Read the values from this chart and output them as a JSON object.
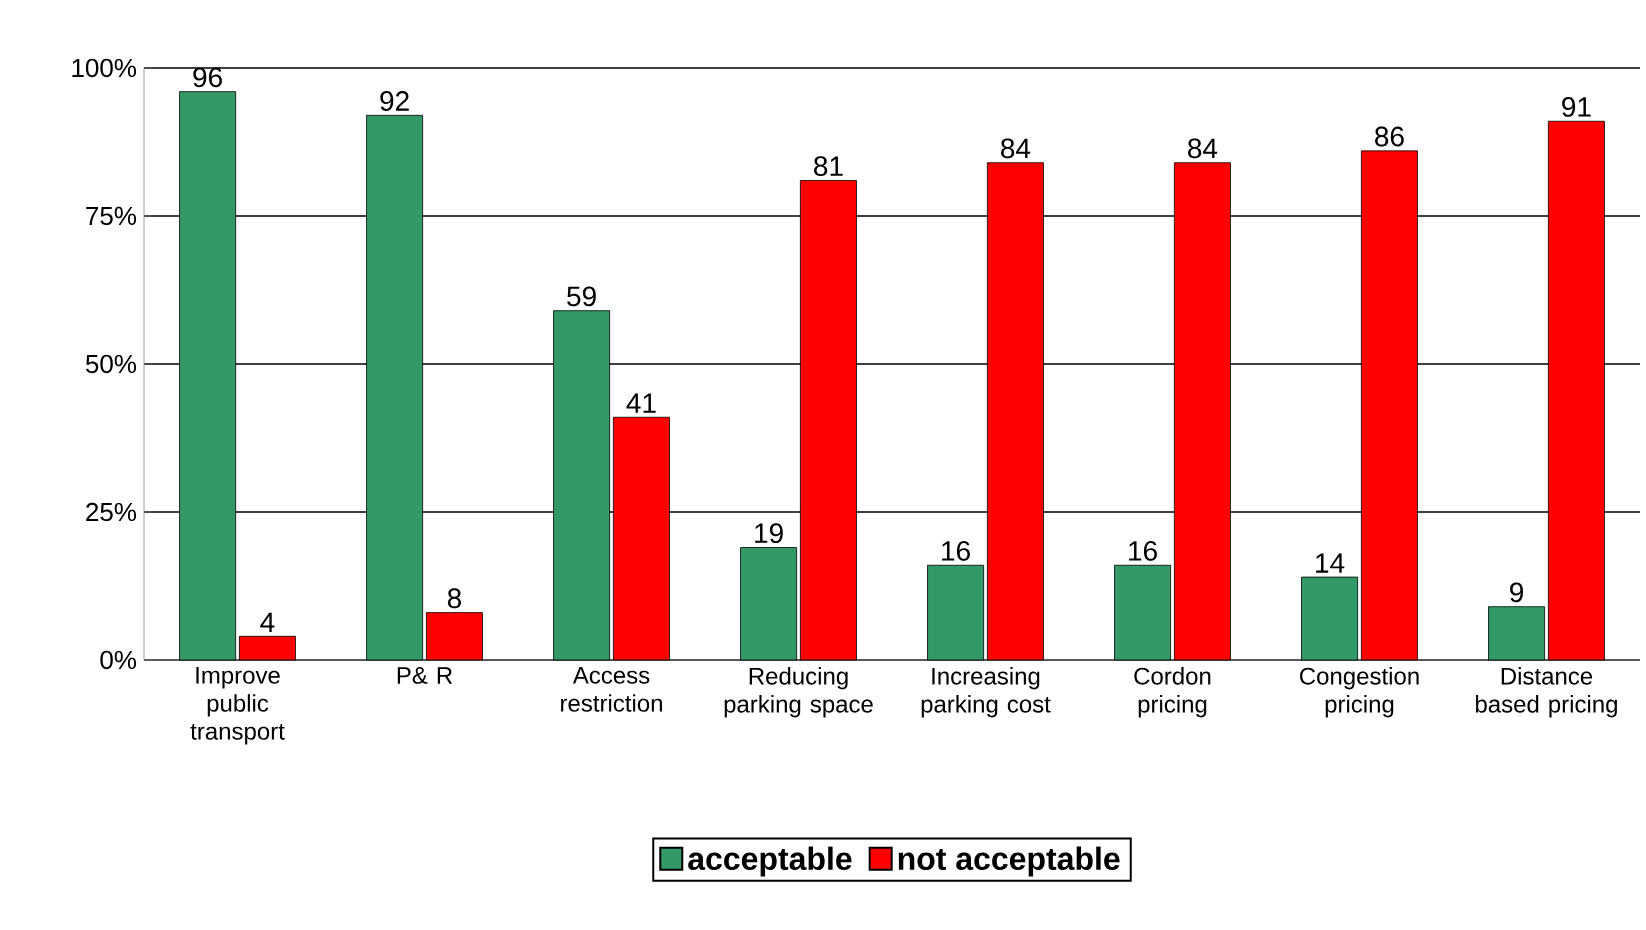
{
  "chart_data": {
    "type": "bar",
    "categories": [
      "Improve public transport",
      "P& R",
      "Access restriction",
      "Reducing parking space",
      "Increasing parking cost",
      "Cordon pricing",
      "Congestion pricing",
      "Distance based pricing"
    ],
    "series": [
      {
        "name": "acceptable",
        "color": "#339966",
        "values": [
          96,
          92,
          59,
          19,
          16,
          16,
          14,
          9
        ]
      },
      {
        "name": "not acceptable",
        "color": "#ff0000",
        "values": [
          4,
          8,
          41,
          81,
          84,
          84,
          86,
          91
        ]
      }
    ],
    "ylim": [
      0,
      100
    ],
    "yticks": [
      {
        "value": 0,
        "label": "0%"
      },
      {
        "value": 25,
        "label": "25%"
      },
      {
        "value": 50,
        "label": "50%"
      },
      {
        "value": 75,
        "label": "75%"
      },
      {
        "value": 100,
        "label": "100%"
      }
    ],
    "grid": "y",
    "legend": "bottom",
    "data_labels": true
  }
}
